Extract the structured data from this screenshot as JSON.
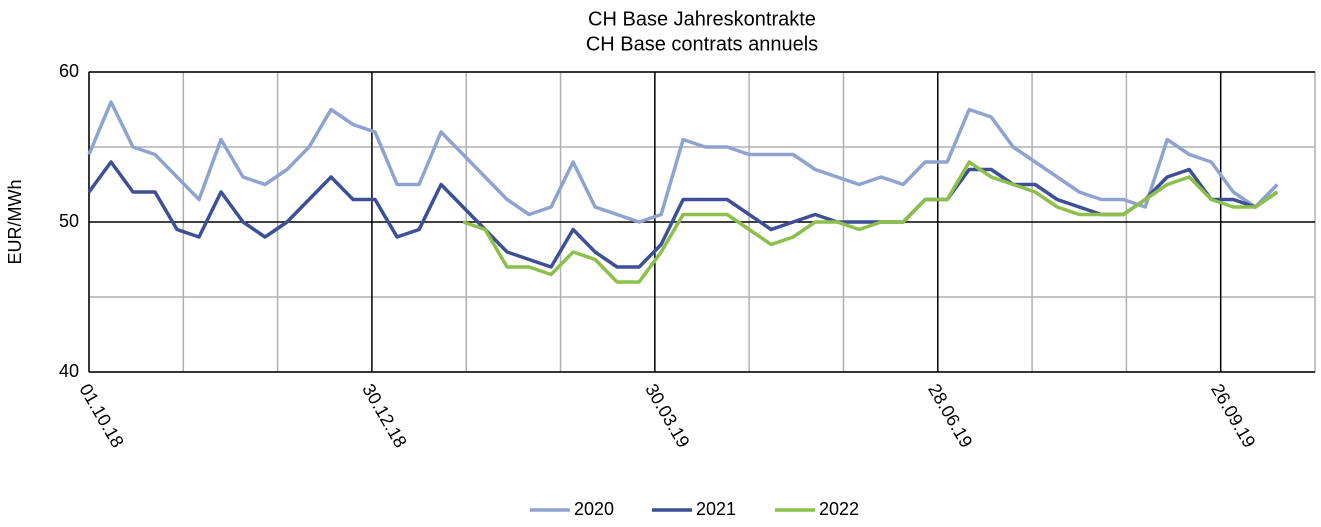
{
  "chart_data": {
    "type": "line",
    "title": "CH Base Jahreskontrakte",
    "subtitle": "CH Base contrats annuels",
    "ylabel": "EUR/MWh",
    "x": [
      "01.10.18",
      "08.10.18",
      "15.10.18",
      "22.10.18",
      "29.10.18",
      "05.11.18",
      "12.11.18",
      "19.11.18",
      "26.11.18",
      "03.12.18",
      "10.12.18",
      "17.12.18",
      "24.12.18",
      "31.12.18",
      "07.01.19",
      "14.01.19",
      "21.01.19",
      "28.01.19",
      "04.02.19",
      "11.02.19",
      "18.02.19",
      "25.02.19",
      "04.03.19",
      "11.03.19",
      "18.03.19",
      "25.03.19",
      "01.04.19",
      "08.04.19",
      "15.04.19",
      "22.04.19",
      "29.04.19",
      "06.05.19",
      "13.05.19",
      "20.05.19",
      "27.05.19",
      "03.06.19",
      "10.06.19",
      "17.06.19",
      "24.06.19",
      "01.07.19",
      "08.07.19",
      "15.07.19",
      "22.07.19",
      "29.07.19",
      "05.08.19",
      "12.08.19",
      "19.08.19",
      "26.08.19",
      "02.09.19",
      "09.09.19",
      "16.09.19",
      "23.09.19",
      "30.09.19",
      "07.10.19",
      "14.10.19"
    ],
    "series": [
      {
        "name": "2020",
        "color": "#8fa3d0",
        "values": [
          54.5,
          58,
          55,
          54.5,
          53,
          51.5,
          55.5,
          53,
          52.5,
          53.5,
          55,
          57.5,
          56.5,
          56,
          52.5,
          52.5,
          56,
          54.5,
          53,
          51.5,
          50.5,
          51,
          54,
          51,
          50.5,
          50,
          50.5,
          55.5,
          55,
          55,
          54.5,
          54.5,
          54.5,
          53.5,
          53,
          52.5,
          53,
          52.5,
          54,
          54,
          57.5,
          57,
          55,
          54,
          53,
          52,
          51.5,
          51.5,
          51,
          55.5,
          54.5,
          54,
          52,
          51,
          52.5
        ]
      },
      {
        "name": "2021",
        "color": "#3d4f97",
        "values": [
          52,
          54,
          52,
          52,
          49.5,
          49,
          52,
          50,
          49,
          50,
          51.5,
          53,
          51.5,
          51.5,
          49,
          49.5,
          52.5,
          51,
          49.5,
          48,
          47.5,
          47,
          49.5,
          48,
          47,
          47,
          48.5,
          51.5,
          51.5,
          51.5,
          50.5,
          49.5,
          50,
          50.5,
          50,
          50,
          50,
          50,
          51.5,
          51.5,
          53.5,
          53.5,
          52.5,
          52.5,
          51.5,
          51,
          50.5,
          50.5,
          51.5,
          53,
          53.5,
          51.5,
          51.5,
          51,
          52
        ]
      },
      {
        "name": "2022",
        "color": "#8cc04b",
        "values": [
          null,
          null,
          null,
          null,
          null,
          null,
          null,
          null,
          null,
          null,
          null,
          null,
          null,
          null,
          null,
          null,
          null,
          50,
          49.5,
          47,
          47,
          46.5,
          48,
          47.5,
          46,
          46,
          48,
          50.5,
          50.5,
          50.5,
          49.5,
          48.5,
          49,
          50,
          50,
          49.5,
          50,
          50,
          51.5,
          51.5,
          54,
          53,
          52.5,
          52,
          51,
          50.5,
          50.5,
          50.5,
          51.5,
          52.5,
          53,
          51.5,
          51,
          51,
          52
        ]
      }
    ],
    "xlim": [
      "01.10.18",
      "26.10.19"
    ],
    "xticks": [
      "01.10.18",
      "30.12.18",
      "30.03.19",
      "28.06.19",
      "26.09.19"
    ],
    "x_minor_ticks": [
      "31.10.18",
      "30.11.18",
      "29.01.19",
      "28.02.19",
      "29.04.19",
      "29.05.19",
      "28.07.19",
      "27.08.19"
    ],
    "ylim": [
      40,
      60
    ],
    "yticks": [
      40,
      50,
      60
    ],
    "y_minor_ticks": [
      45,
      55
    ],
    "grid": true,
    "legend": "bottom"
  }
}
